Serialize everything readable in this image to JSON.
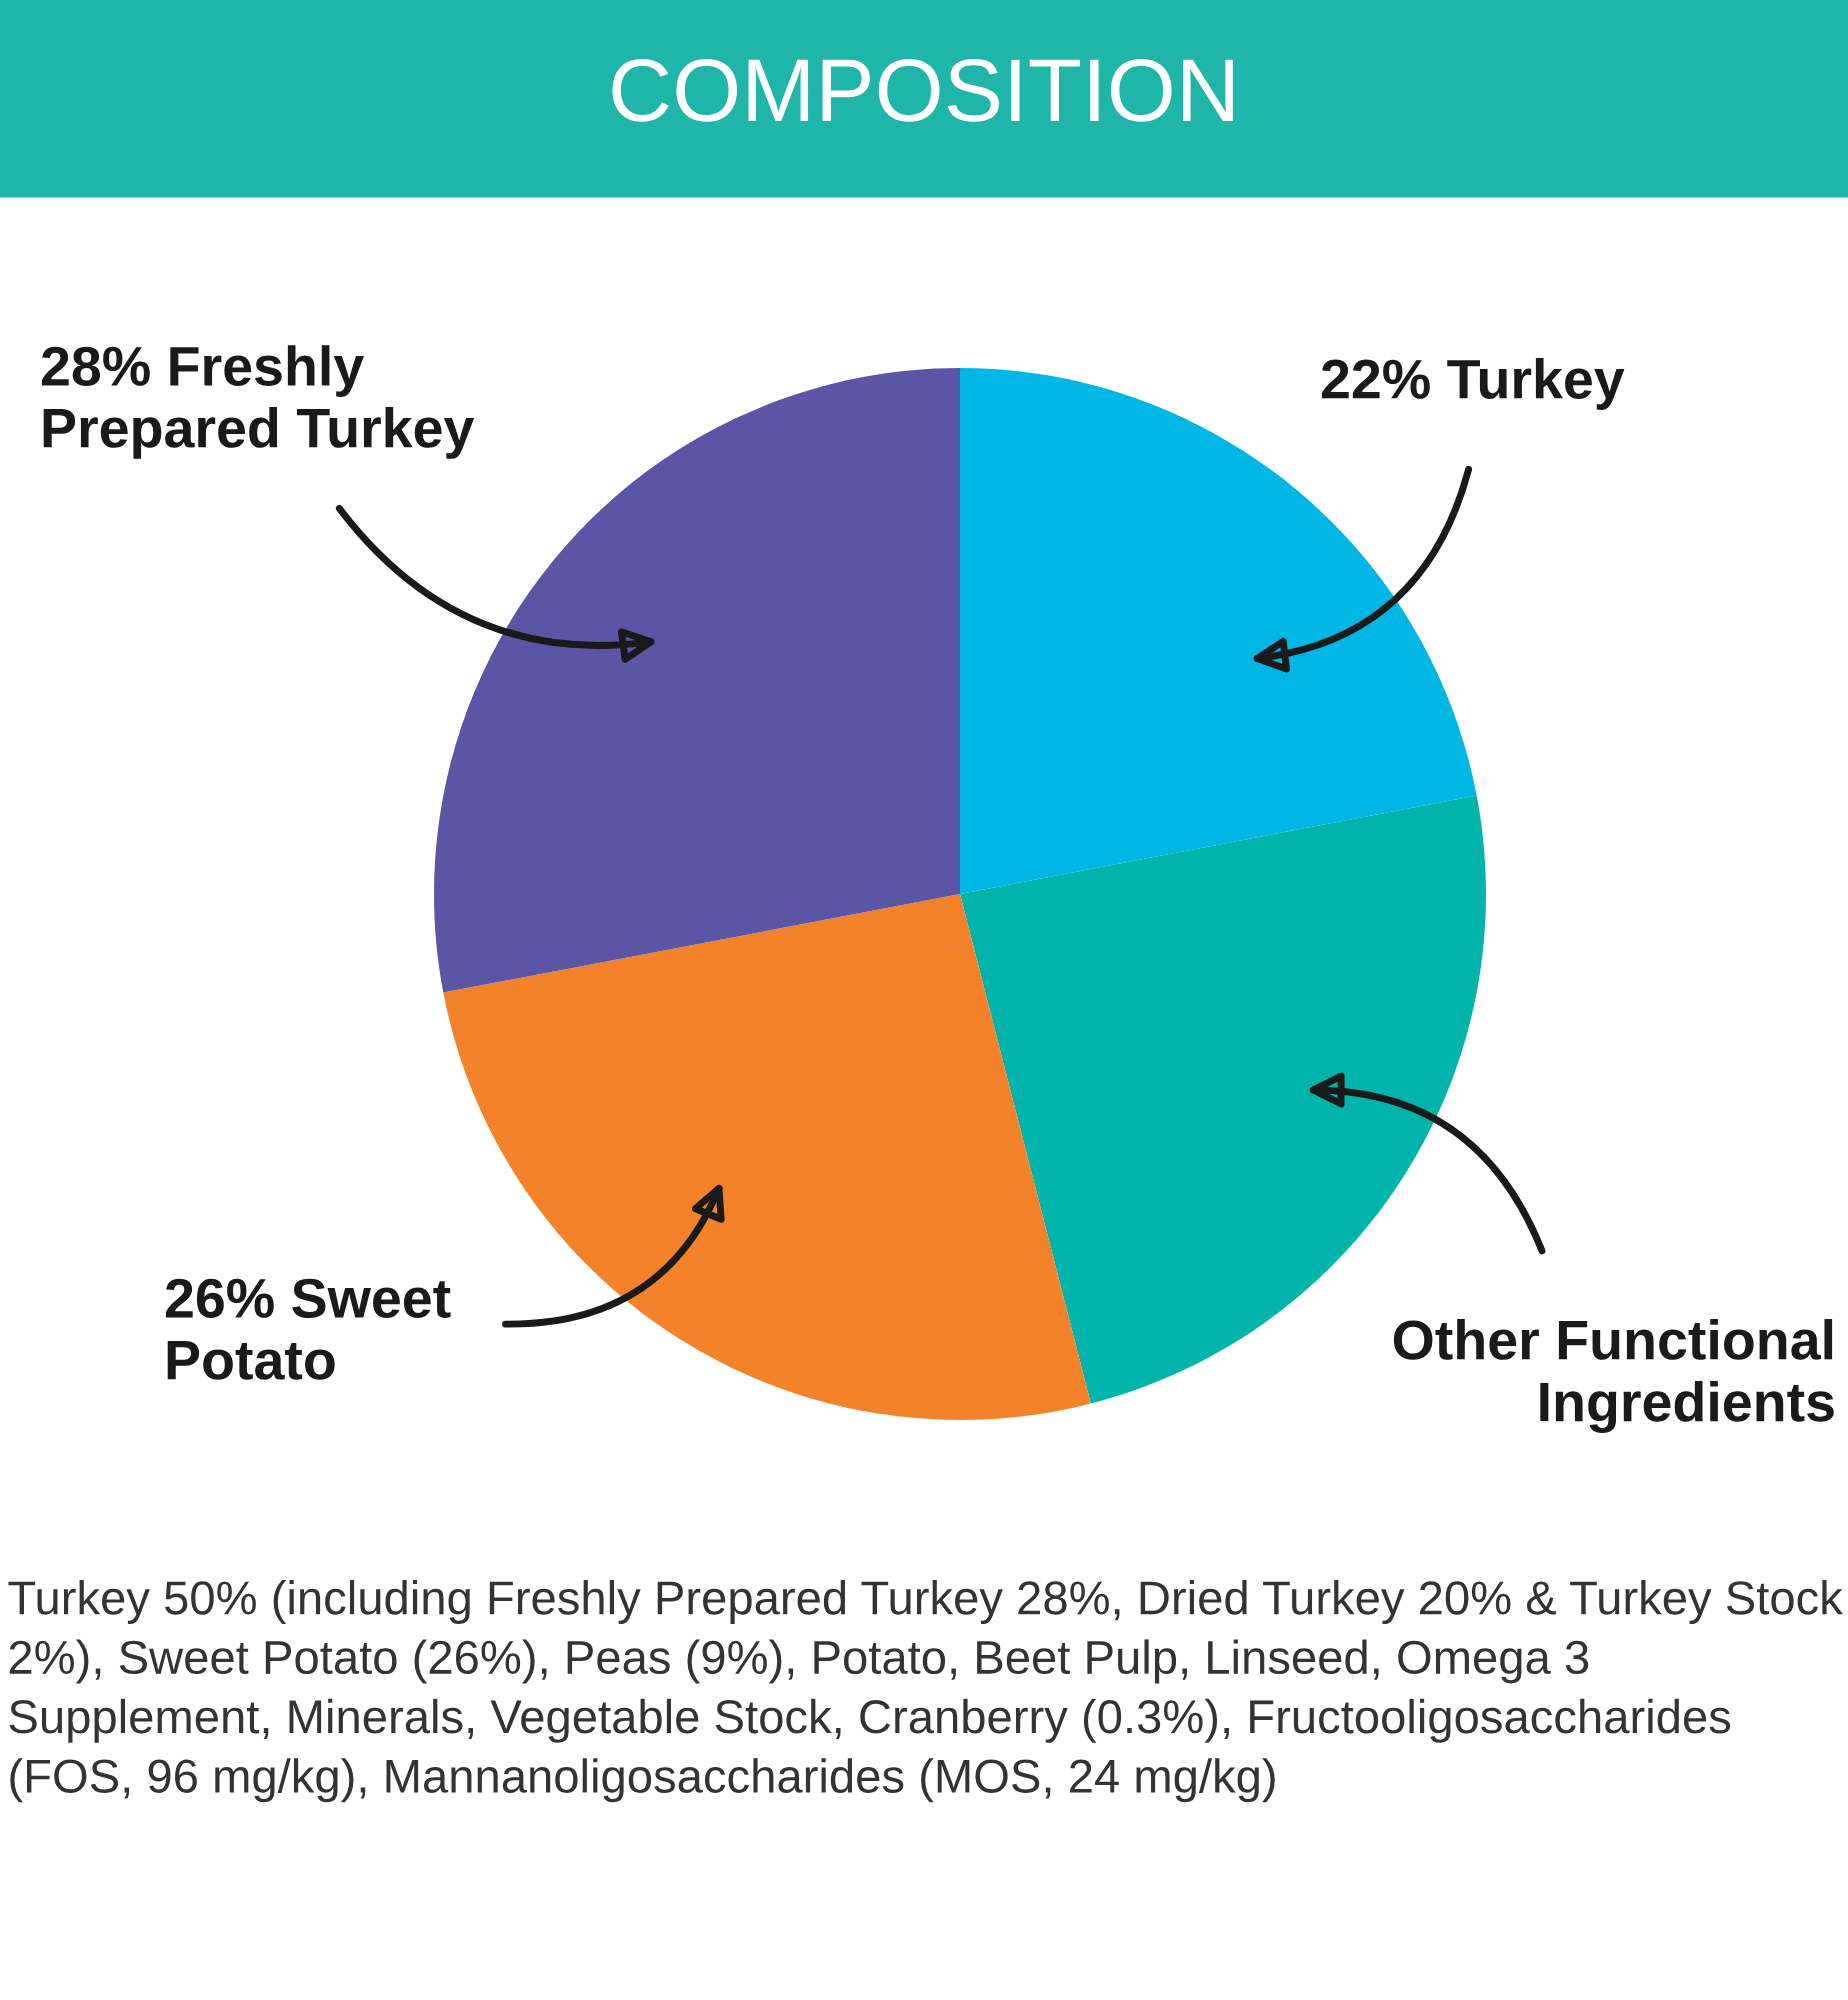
{
  "chart_data": {
    "type": "pie",
    "title": "COMPOSITION",
    "categories": [
      "Turkey",
      "Other Functional\nIngredients",
      "Sweet\nPotato",
      "Freshly\nPrepared Turkey"
    ],
    "values": [
      22,
      24,
      26,
      28
    ],
    "colors": [
      "#00b6e5",
      "#00b3ab",
      "#f4822b",
      "#5a56a5"
    ],
    "value_labels": [
      "22%",
      null,
      "26%",
      "28%"
    ],
    "annotations": [
      "Turkey 50% (including Freshly Prepared Turkey 28%, Dried Turkey 20% & Turkey Stock 2%), Sweet Potato (26%), Peas (9%), Potato, Beet Pulp, Linseed, Omega 3 Supplement, Minerals, Vegetable Stock, Cranberry (0.3%), Fructooligosaccharides (FOS, 96 mg/kg), Mannanoligosaccharides (MOS, 24 mg/kg)"
    ]
  }
}
